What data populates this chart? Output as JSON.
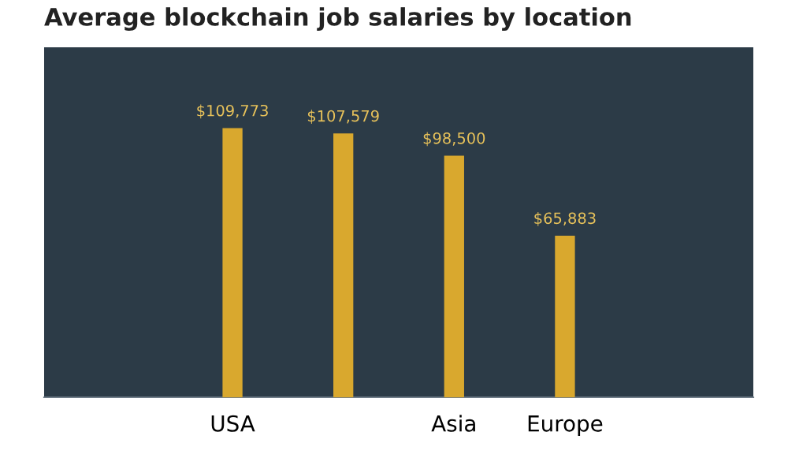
{
  "chart_data": {
    "type": "bar",
    "title": "Average blockchain job salaries by location",
    "categories": [
      "USA",
      null,
      "Asia",
      "Europe"
    ],
    "values": [
      109773,
      107579,
      98500,
      65883
    ],
    "value_labels": [
      "$109,773",
      "$107,579",
      "$98,500",
      "$65,883"
    ],
    "color": "#d9a82e",
    "grid": false
  }
}
